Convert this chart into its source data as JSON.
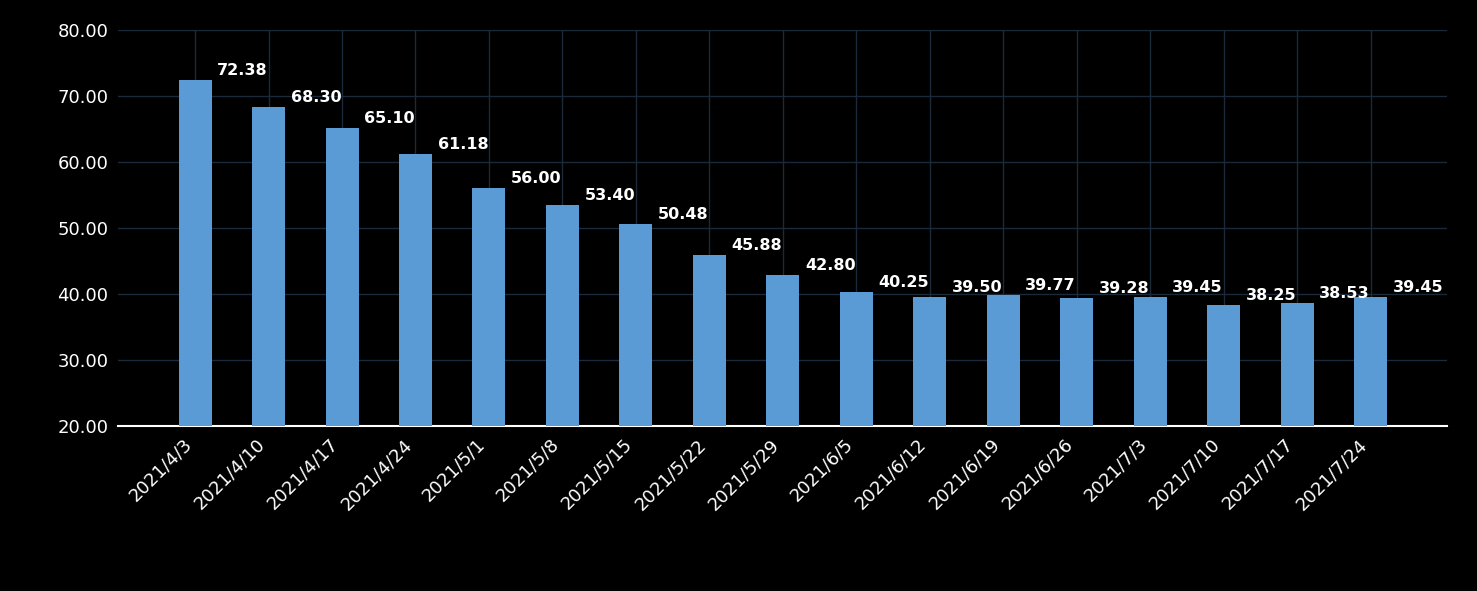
{
  "categories": [
    "2021/4/3",
    "2021/4/10",
    "2021/4/17",
    "2021/4/24",
    "2021/5/1",
    "2021/5/8",
    "2021/5/15",
    "2021/5/22",
    "2021/5/29",
    "2021/6/5",
    "2021/6/12",
    "2021/6/19",
    "2021/6/26",
    "2021/7/3",
    "2021/7/10",
    "2021/7/17",
    "2021/7/24"
  ],
  "values": [
    72.38,
    68.3,
    65.1,
    61.18,
    56.0,
    53.4,
    50.48,
    45.88,
    42.8,
    40.25,
    39.5,
    39.77,
    39.28,
    39.45,
    38.25,
    38.53,
    39.45
  ],
  "bar_color": "#5B9BD5",
  "background_color": "#000000",
  "text_color": "#FFFFFF",
  "grid_color": "#1a2a3a",
  "ylim": [
    20.0,
    80.0
  ],
  "yticks": [
    20.0,
    30.0,
    40.0,
    50.0,
    60.0,
    70.0,
    80.0
  ],
  "tick_fontsize": 13,
  "bar_label_fontsize": 11.5,
  "bar_width": 0.45
}
